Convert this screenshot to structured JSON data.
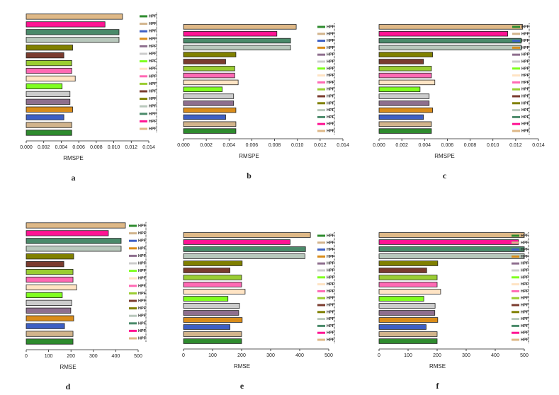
{
  "chart_data": [
    {
      "type": "bar",
      "orientation": "horizontal",
      "caption": "a",
      "xlabel": "RMSPE",
      "xlim": [
        0,
        0.014
      ],
      "xticks": [
        {
          "value": 0,
          "label": "0.000"
        },
        {
          "value": 0.002,
          "label": "0.002"
        },
        {
          "value": 0.004,
          "label": "0.004"
        },
        {
          "value": 0.006,
          "label": "0.006"
        },
        {
          "value": 0.008,
          "label": "0.008"
        },
        {
          "value": 0.01,
          "label": "0.010"
        },
        {
          "value": 0.012,
          "label": "0.012"
        },
        {
          "value": 0.014,
          "label": "0.014"
        }
      ],
      "series": [
        {
          "name": "HPF",
          "color": "#2e8b2e",
          "values": [
            0.0052
          ]
        },
        {
          "name": "HPF",
          "color": "#d2b48c",
          "values": [
            0.0052
          ]
        },
        {
          "name": "HPF",
          "color": "#3d5fc4",
          "values": [
            0.0043
          ]
        },
        {
          "name": "HPF",
          "color": "#d98c1a",
          "values": [
            0.0053
          ]
        },
        {
          "name": "HPF",
          "color": "#8e6f8e",
          "values": [
            0.005
          ]
        },
        {
          "name": "HPF",
          "color": "#cccccc",
          "values": [
            0.005
          ]
        },
        {
          "name": "HPF",
          "color": "#80ff20",
          "values": [
            0.0041
          ]
        },
        {
          "name": "HPF",
          "color": "#ffe4c4",
          "values": [
            0.0056
          ]
        },
        {
          "name": "HPF",
          "color": "#ff69b4",
          "values": [
            0.0052
          ]
        },
        {
          "name": "HPF",
          "color": "#9acd32",
          "values": [
            0.0052
          ]
        },
        {
          "name": "HPF",
          "color": "#7a3b2e",
          "values": [
            0.0043
          ]
        },
        {
          "name": "HPF",
          "color": "#808000",
          "values": [
            0.0053
          ]
        },
        {
          "name": "HPF",
          "color": "#b8c8bc",
          "values": [
            0.0106
          ]
        },
        {
          "name": "HPF",
          "color": "#4a8a6a",
          "values": [
            0.0106
          ]
        },
        {
          "name": "HPF",
          "color": "#ff1493",
          "values": [
            0.009
          ]
        },
        {
          "name": "HPF",
          "color": "#deb887",
          "values": [
            0.011
          ]
        }
      ]
    },
    {
      "type": "bar",
      "orientation": "horizontal",
      "caption": "b",
      "xlabel": "RMSPE",
      "xlim": [
        0,
        0.014
      ],
      "xticks": [
        {
          "value": 0,
          "label": "0.000"
        },
        {
          "value": 0.002,
          "label": "0.002"
        },
        {
          "value": 0.004,
          "label": "0.004"
        },
        {
          "value": 0.006,
          "label": "0.006"
        },
        {
          "value": 0.008,
          "label": "0.008"
        },
        {
          "value": 0.01,
          "label": "0.010"
        },
        {
          "value": 0.012,
          "label": "0.012"
        },
        {
          "value": 0.014,
          "label": "0.014"
        }
      ],
      "series": [
        {
          "name": "HPF",
          "color": "#2e8b2e",
          "values": [
            0.0046
          ]
        },
        {
          "name": "HPF",
          "color": "#d2b48c",
          "values": [
            0.0046
          ]
        },
        {
          "name": "HPF",
          "color": "#3d5fc4",
          "values": [
            0.0037
          ]
        },
        {
          "name": "HPF",
          "color": "#d98c1a",
          "values": [
            0.0046
          ]
        },
        {
          "name": "HPF",
          "color": "#8e6f8e",
          "values": [
            0.0044
          ]
        },
        {
          "name": "HPF",
          "color": "#cccccc",
          "values": [
            0.0044
          ]
        },
        {
          "name": "HPF",
          "color": "#80ff20",
          "values": [
            0.0034
          ]
        },
        {
          "name": "HPF",
          "color": "#ffe4c4",
          "values": [
            0.0048
          ]
        },
        {
          "name": "HPF",
          "color": "#ff69b4",
          "values": [
            0.0045
          ]
        },
        {
          "name": "HPF",
          "color": "#9acd32",
          "values": [
            0.0045
          ]
        },
        {
          "name": "HPF",
          "color": "#7a3b2e",
          "values": [
            0.0037
          ]
        },
        {
          "name": "HPF",
          "color": "#808000",
          "values": [
            0.0046
          ]
        },
        {
          "name": "HPF",
          "color": "#b8c8bc",
          "values": [
            0.0094
          ]
        },
        {
          "name": "HPF",
          "color": "#4a8a6a",
          "values": [
            0.0094
          ]
        },
        {
          "name": "HPF",
          "color": "#ff1493",
          "values": [
            0.0082
          ]
        },
        {
          "name": "HPF",
          "color": "#deb887",
          "values": [
            0.0099
          ]
        }
      ]
    },
    {
      "type": "bar",
      "orientation": "horizontal",
      "caption": "c",
      "xlabel": "RMSPE",
      "xlim": [
        0,
        0.014
      ],
      "xticks": [
        {
          "value": 0,
          "label": "0.000"
        },
        {
          "value": 0.002,
          "label": "0.002"
        },
        {
          "value": 0.004,
          "label": "0.004"
        },
        {
          "value": 0.006,
          "label": "0.006"
        },
        {
          "value": 0.008,
          "label": "0.008"
        },
        {
          "value": 0.01,
          "label": "0.010"
        },
        {
          "value": 0.012,
          "label": "0.012"
        },
        {
          "value": 0.014,
          "label": "0.014"
        }
      ],
      "series": [
        {
          "name": "HPF",
          "color": "#2e8b2e",
          "values": [
            0.0046
          ]
        },
        {
          "name": "HPF",
          "color": "#d2b48c",
          "values": [
            0.0046
          ]
        },
        {
          "name": "HPF",
          "color": "#3d5fc4",
          "values": [
            0.0039
          ]
        },
        {
          "name": "HPF",
          "color": "#d98c1a",
          "values": [
            0.0047
          ]
        },
        {
          "name": "HPF",
          "color": "#8e6f8e",
          "values": [
            0.0044
          ]
        },
        {
          "name": "HPF",
          "color": "#cccccc",
          "values": [
            0.0044
          ]
        },
        {
          "name": "HPF",
          "color": "#80ff20",
          "values": [
            0.0036
          ]
        },
        {
          "name": "HPF",
          "color": "#ffe4c4",
          "values": [
            0.0049
          ]
        },
        {
          "name": "HPF",
          "color": "#ff69b4",
          "values": [
            0.0046
          ]
        },
        {
          "name": "HPF",
          "color": "#9acd32",
          "values": [
            0.0046
          ]
        },
        {
          "name": "HPF",
          "color": "#7a3b2e",
          "values": [
            0.0039
          ]
        },
        {
          "name": "HPF",
          "color": "#808000",
          "values": [
            0.0047
          ]
        },
        {
          "name": "HPF",
          "color": "#b8c8bc",
          "values": [
            0.0125
          ]
        },
        {
          "name": "HPF",
          "color": "#4a8a6a",
          "values": [
            0.0125
          ]
        },
        {
          "name": "HPF",
          "color": "#ff1493",
          "values": [
            0.0113
          ]
        },
        {
          "name": "HPF",
          "color": "#deb887",
          "values": [
            0.0126
          ]
        }
      ]
    },
    {
      "type": "bar",
      "orientation": "horizontal",
      "caption": "d",
      "xlabel": "RMSE",
      "xlim": [
        0,
        500
      ],
      "xticks": [
        0,
        100,
        200,
        300,
        400,
        500
      ],
      "series": [
        {
          "name": "HPF",
          "color": "#2e8b2e",
          "values": [
            209
          ]
        },
        {
          "name": "HPF",
          "color": "#d2b48c",
          "values": [
            209
          ]
        },
        {
          "name": "HPF",
          "color": "#3d5fc4",
          "values": [
            171
          ]
        },
        {
          "name": "HPF",
          "color": "#d98c1a",
          "values": [
            212
          ]
        },
        {
          "name": "HPF",
          "color": "#8e6f8e",
          "values": [
            199
          ]
        },
        {
          "name": "HPF",
          "color": "#cccccc",
          "values": [
            203
          ]
        },
        {
          "name": "HPF",
          "color": "#80ff20",
          "values": [
            161
          ]
        },
        {
          "name": "HPF",
          "color": "#ffe4c4",
          "values": [
            225
          ]
        },
        {
          "name": "HPF",
          "color": "#ff69b4",
          "values": [
            209
          ]
        },
        {
          "name": "HPF",
          "color": "#9acd32",
          "values": [
            209
          ]
        },
        {
          "name": "HPF",
          "color": "#7a3b2e",
          "values": [
            168
          ]
        },
        {
          "name": "HPF",
          "color": "#808000",
          "values": [
            212
          ]
        },
        {
          "name": "HPF",
          "color": "#b8c8bc",
          "values": [
            424
          ]
        },
        {
          "name": "HPF",
          "color": "#4a8a6a",
          "values": [
            424
          ]
        },
        {
          "name": "HPF",
          "color": "#ff1493",
          "values": [
            367
          ]
        },
        {
          "name": "HPF",
          "color": "#deb887",
          "values": [
            443
          ]
        }
      ]
    },
    {
      "type": "bar",
      "orientation": "horizontal",
      "caption": "e",
      "xlabel": "RMSE",
      "xlim": [
        0,
        500
      ],
      "xticks": [
        0,
        100,
        200,
        300,
        400,
        500
      ],
      "series": [
        {
          "name": "HPF",
          "color": "#2e8b2e",
          "values": [
            200
          ]
        },
        {
          "name": "HPF",
          "color": "#d2b48c",
          "values": [
            200
          ]
        },
        {
          "name": "HPF",
          "color": "#3d5fc4",
          "values": [
            160
          ]
        },
        {
          "name": "HPF",
          "color": "#d98c1a",
          "values": [
            202
          ]
        },
        {
          "name": "HPF",
          "color": "#8e6f8e",
          "values": [
            190
          ]
        },
        {
          "name": "HPF",
          "color": "#cccccc",
          "values": [
            193
          ]
        },
        {
          "name": "HPF",
          "color": "#80ff20",
          "values": [
            153
          ]
        },
        {
          "name": "HPF",
          "color": "#ffe4c4",
          "values": [
            212
          ]
        },
        {
          "name": "HPF",
          "color": "#ff69b4",
          "values": [
            200
          ]
        },
        {
          "name": "HPF",
          "color": "#9acd32",
          "values": [
            200
          ]
        },
        {
          "name": "HPF",
          "color": "#7a3b2e",
          "values": [
            160
          ]
        },
        {
          "name": "HPF",
          "color": "#808000",
          "values": [
            202
          ]
        },
        {
          "name": "HPF",
          "color": "#b8c8bc",
          "values": [
            418
          ]
        },
        {
          "name": "HPF",
          "color": "#4a8a6a",
          "values": [
            420
          ]
        },
        {
          "name": "HPF",
          "color": "#ff1493",
          "values": [
            367
          ]
        },
        {
          "name": "HPF",
          "color": "#deb887",
          "values": [
            437
          ]
        }
      ]
    },
    {
      "type": "bar",
      "orientation": "horizontal",
      "caption": "f",
      "xlabel": "RMSE",
      "xlim": [
        0,
        500
      ],
      "xticks": [
        0,
        100,
        200,
        300,
        400,
        500
      ],
      "series": [
        {
          "name": "HPF",
          "color": "#2e8b2e",
          "values": [
            200
          ]
        },
        {
          "name": "HPF",
          "color": "#d2b48c",
          "values": [
            200
          ]
        },
        {
          "name": "HPF",
          "color": "#3d5fc4",
          "values": [
            162
          ]
        },
        {
          "name": "HPF",
          "color": "#d98c1a",
          "values": [
            202
          ]
        },
        {
          "name": "HPF",
          "color": "#8e6f8e",
          "values": [
            192
          ]
        },
        {
          "name": "HPF",
          "color": "#cccccc",
          "values": [
            193
          ]
        },
        {
          "name": "HPF",
          "color": "#80ff20",
          "values": [
            154
          ]
        },
        {
          "name": "HPF",
          "color": "#ffe4c4",
          "values": [
            212
          ]
        },
        {
          "name": "HPF",
          "color": "#ff69b4",
          "values": [
            200
          ]
        },
        {
          "name": "HPF",
          "color": "#9acd32",
          "values": [
            200
          ]
        },
        {
          "name": "HPF",
          "color": "#7a3b2e",
          "values": [
            164
          ]
        },
        {
          "name": "HPF",
          "color": "#808000",
          "values": [
            202
          ]
        },
        {
          "name": "HPF",
          "color": "#b8c8bc",
          "values": [
            500
          ]
        },
        {
          "name": "HPF",
          "color": "#4a8a6a",
          "values": [
            500
          ]
        },
        {
          "name": "HPF",
          "color": "#ff1493",
          "values": [
            480
          ]
        },
        {
          "name": "HPF",
          "color": "#deb887",
          "values": [
            500
          ]
        }
      ]
    }
  ]
}
